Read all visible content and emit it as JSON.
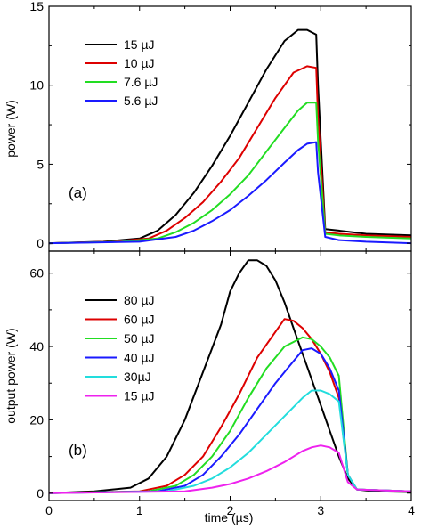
{
  "chart_data": [
    {
      "type": "line",
      "panel_label": "(a)",
      "xlabel": "",
      "ylabel": "power (W)",
      "xlim": [
        0,
        4
      ],
      "ylim": [
        -0.5,
        15
      ],
      "xticks": [
        0,
        1,
        2,
        3,
        4
      ],
      "yticks": [
        0,
        5,
        10,
        15
      ],
      "grid": false,
      "legend_position": "top-left",
      "series": [
        {
          "name": "15 µJ",
          "color": "#000000",
          "x": [
            0.0,
            0.6,
            1.0,
            1.2,
            1.4,
            1.6,
            1.8,
            2.0,
            2.2,
            2.4,
            2.6,
            2.75,
            2.85,
            2.95,
            2.97,
            3.05,
            3.2,
            3.5,
            4.0
          ],
          "y": [
            0.0,
            0.1,
            0.3,
            0.8,
            1.8,
            3.2,
            4.9,
            6.8,
            8.9,
            11.0,
            12.8,
            13.5,
            13.5,
            13.2,
            10.0,
            0.9,
            0.8,
            0.6,
            0.5
          ]
        },
        {
          "name": "10 µJ",
          "color": "#dd0000",
          "x": [
            0.0,
            0.7,
            1.1,
            1.3,
            1.5,
            1.7,
            1.9,
            2.1,
            2.3,
            2.5,
            2.7,
            2.85,
            2.95,
            2.97,
            3.05,
            3.2,
            3.5,
            4.0
          ],
          "y": [
            0.0,
            0.1,
            0.3,
            0.8,
            1.6,
            2.6,
            3.9,
            5.4,
            7.3,
            9.2,
            10.8,
            11.2,
            11.1,
            8.0,
            0.7,
            0.6,
            0.5,
            0.4
          ]
        },
        {
          "name": "7.6 µJ",
          "color": "#22dd22",
          "x": [
            0.0,
            0.8,
            1.2,
            1.4,
            1.6,
            1.8,
            2.0,
            2.2,
            2.4,
            2.6,
            2.75,
            2.85,
            2.95,
            2.97,
            3.05,
            3.2,
            3.5,
            4.0
          ],
          "y": [
            0.0,
            0.1,
            0.3,
            0.7,
            1.3,
            2.1,
            3.1,
            4.3,
            5.8,
            7.3,
            8.4,
            8.9,
            8.9,
            6.5,
            0.6,
            0.5,
            0.4,
            0.3
          ]
        },
        {
          "name": "5.6 µJ",
          "color": "#1a1aff",
          "x": [
            0.0,
            1.0,
            1.4,
            1.6,
            1.8,
            2.0,
            2.2,
            2.4,
            2.6,
            2.75,
            2.85,
            2.95,
            2.97,
            3.05,
            3.2,
            3.5,
            4.0
          ],
          "y": [
            0.0,
            0.1,
            0.4,
            0.8,
            1.4,
            2.1,
            3.0,
            4.0,
            5.1,
            5.9,
            6.3,
            6.4,
            4.5,
            0.4,
            0.2,
            0.1,
            0.0
          ]
        }
      ]
    },
    {
      "type": "line",
      "panel_label": "(b)",
      "xlabel": "time (µs)",
      "ylabel": "output power (W)",
      "xlim": [
        0,
        4
      ],
      "ylim": [
        -2,
        66
      ],
      "xticks": [
        0,
        1,
        2,
        3,
        4
      ],
      "yticks": [
        0,
        20,
        40,
        60
      ],
      "grid": false,
      "legend_position": "left",
      "series": [
        {
          "name": "80 µJ",
          "color": "#000000",
          "x": [
            0.0,
            0.5,
            0.9,
            1.1,
            1.3,
            1.5,
            1.7,
            1.9,
            2.0,
            2.1,
            2.2,
            2.3,
            2.4,
            2.5,
            2.6,
            2.7,
            2.8,
            2.9,
            3.0,
            3.1,
            3.2,
            3.3,
            3.4,
            3.6,
            4.0
          ],
          "y": [
            0.0,
            0.5,
            1.5,
            4.0,
            10.0,
            20.0,
            33.0,
            46.0,
            55.0,
            60.0,
            63.5,
            63.5,
            62.0,
            58.0,
            52.0,
            45.0,
            38.0,
            31.0,
            24.0,
            17.0,
            10.0,
            4.0,
            1.0,
            0.5,
            0.3
          ]
        },
        {
          "name": "60 µJ",
          "color": "#dd0000",
          "x": [
            0.0,
            1.0,
            1.3,
            1.5,
            1.7,
            1.9,
            2.1,
            2.3,
            2.5,
            2.6,
            2.7,
            2.8,
            2.9,
            3.0,
            3.1,
            3.2,
            3.3,
            3.4,
            4.0
          ],
          "y": [
            0.0,
            0.5,
            2.0,
            5.0,
            10.0,
            18.0,
            27.0,
            37.0,
            44.0,
            47.5,
            47.0,
            45.0,
            42.0,
            38.0,
            33.0,
            26.0,
            5.0,
            1.0,
            0.5
          ]
        },
        {
          "name": "50 µJ",
          "color": "#22dd22",
          "x": [
            0.0,
            1.1,
            1.4,
            1.6,
            1.8,
            2.0,
            2.2,
            2.4,
            2.6,
            2.8,
            2.9,
            3.0,
            3.1,
            3.2,
            3.3,
            3.4,
            4.0
          ],
          "y": [
            0.0,
            0.5,
            2.0,
            5.0,
            10.0,
            17.0,
            26.0,
            34.0,
            40.0,
            42.5,
            42.0,
            40.0,
            37.0,
            32.0,
            5.0,
            1.0,
            0.5
          ]
        },
        {
          "name": "40 µJ",
          "color": "#1a1aff",
          "x": [
            0.0,
            1.2,
            1.5,
            1.7,
            1.9,
            2.1,
            2.3,
            2.5,
            2.7,
            2.8,
            2.9,
            3.0,
            3.1,
            3.2,
            3.3,
            3.4,
            4.0
          ],
          "y": [
            0.0,
            0.5,
            2.0,
            5.0,
            10.0,
            16.0,
            23.0,
            30.0,
            36.0,
            39.0,
            39.5,
            38.0,
            34.0,
            28.0,
            5.0,
            1.0,
            0.5
          ]
        },
        {
          "name": "30µJ",
          "color": "#22dddd",
          "x": [
            0.0,
            1.3,
            1.6,
            1.8,
            2.0,
            2.2,
            2.4,
            2.6,
            2.8,
            2.9,
            3.0,
            3.1,
            3.2,
            3.3,
            3.4,
            4.0
          ],
          "y": [
            0.0,
            0.5,
            2.0,
            4.0,
            7.0,
            11.0,
            16.0,
            21.0,
            26.0,
            28.0,
            28.0,
            27.0,
            25.0,
            5.0,
            1.0,
            0.5
          ]
        },
        {
          "name": "15 µJ",
          "color": "#ee22ee",
          "x": [
            0.0,
            1.5,
            1.8,
            2.0,
            2.2,
            2.4,
            2.6,
            2.8,
            2.9,
            3.0,
            3.1,
            3.2,
            3.3,
            3.4,
            4.0
          ],
          "y": [
            0.0,
            0.5,
            1.5,
            2.5,
            4.0,
            6.0,
            8.5,
            11.5,
            12.5,
            13.0,
            12.5,
            11.0,
            3.0,
            1.0,
            0.5
          ]
        }
      ]
    }
  ]
}
